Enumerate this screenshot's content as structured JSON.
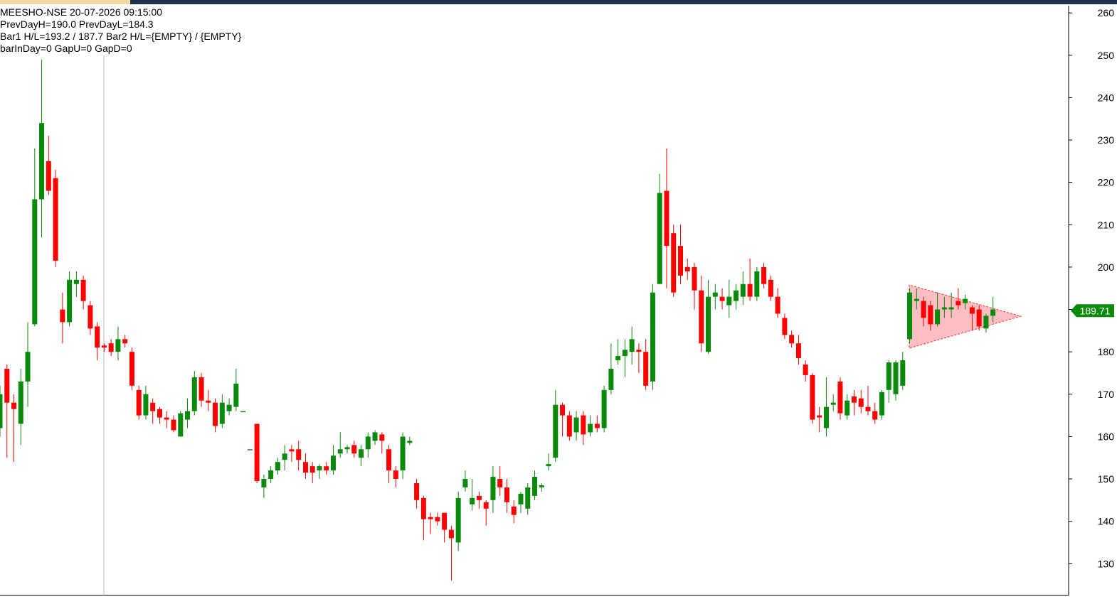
{
  "chart_data": {
    "type": "candlestick",
    "info_lines": [
      "MEESHO-NSE  20-07-2026 09:15:00",
      "PrevDayH=190.0  PrevDayL=184.3",
      "Bar1 H/L=193.2 / 187.7   Bar2 H/L={EMPTY} / {EMPTY}",
      "barInDay=0   GapU=0   GapD=0"
    ],
    "ylim": [
      122.5,
      261.7
    ],
    "yticks": [
      130,
      140,
      150,
      160,
      170,
      180,
      190,
      200,
      210,
      220,
      230,
      240,
      250,
      260
    ],
    "last_price": 189.71,
    "up_color": "#0a8a0a",
    "down_color": "#ff0000",
    "open": [
      162,
      176,
      168,
      163,
      173,
      186.5,
      216,
      225,
      221,
      190,
      187,
      196,
      197,
      191,
      186,
      181.5,
      182,
      180,
      183,
      180,
      171,
      165,
      168,
      166.5,
      164.5,
      164,
      160,
      164,
      166,
      174,
      168.5,
      168,
      163,
      166,
      167,
      166,
      157,
      163,
      148,
      150,
      152,
      154.5,
      157,
      157,
      154,
      153,
      152,
      153,
      152,
      156,
      157,
      158,
      155,
      157,
      159,
      160.5,
      157,
      152,
      152,
      158.5,
      149,
      145.5,
      141,
      141,
      142,
      138,
      135,
      148,
      144,
      146,
      144.5,
      145,
      150,
      148,
      143.5,
      144,
      143,
      146,
      148,
      153,
      155,
      167.5,
      165,
      161,
      165,
      161,
      163,
      162,
      171,
      178,
      179,
      180,
      180.5,
      180,
      173,
      196,
      218,
      208,
      205,
      200,
      200,
      194.5,
      180,
      193,
      193,
      191,
      192,
      193,
      196,
      193,
      200,
      197,
      193,
      188,
      184,
      182,
      177,
      174.5,
      165,
      162,
      167.5,
      173,
      165,
      169.5,
      169,
      167,
      166,
      165,
      171,
      170,
      172,
      183,
      192,
      192,
      191,
      186.5,
      190,
      190,
      192,
      191.5,
      190.5,
      190,
      185.5,
      188.5
    ],
    "high": [
      172,
      177,
      170,
      176,
      187,
      228,
      249,
      231,
      223,
      194,
      199,
      199,
      198,
      192,
      187,
      182,
      183,
      186,
      184,
      181,
      172,
      172,
      169,
      167,
      166,
      165,
      166,
      169,
      175.5,
      175,
      171,
      169,
      170,
      169,
      176,
      166,
      157,
      163,
      151,
      153,
      155,
      158,
      158,
      159,
      156,
      154,
      153.5,
      154,
      158,
      161,
      158,
      159,
      158,
      161,
      161.5,
      161,
      158,
      153,
      161,
      160,
      150,
      146,
      142,
      142,
      142,
      139,
      147,
      152,
      150,
      147,
      145,
      153,
      153,
      150,
      145,
      147,
      149,
      152,
      149,
      156,
      171,
      168,
      166,
      166,
      166,
      165,
      165,
      172,
      182,
      183,
      183,
      186,
      182,
      183,
      196,
      222,
      228,
      210,
      210,
      202,
      201,
      198,
      197,
      196,
      195,
      197,
      196,
      199,
      202,
      200,
      201,
      198,
      195,
      189,
      185,
      184,
      178,
      175,
      167,
      174,
      170,
      174,
      170,
      171,
      171,
      172,
      168,
      171,
      178,
      178,
      180,
      195,
      195,
      193,
      192,
      194,
      193,
      194,
      195,
      193.5,
      191,
      191,
      189,
      193
    ],
    "low": [
      160,
      155,
      154,
      158,
      167,
      186,
      207,
      217,
      200,
      182,
      186,
      193,
      190,
      184,
      178,
      180,
      179,
      178,
      181,
      171,
      164,
      164,
      163,
      163,
      162,
      161,
      160,
      162,
      165,
      167,
      166,
      161,
      162,
      165,
      166,
      166,
      157,
      149,
      145.5,
      149,
      151,
      152,
      154,
      152,
      150,
      149,
      150,
      151,
      151,
      155,
      156,
      155,
      153,
      155,
      158,
      156,
      149,
      148,
      150,
      158,
      143,
      135.5,
      137,
      139,
      135,
      126,
      133,
      147,
      142.5,
      143,
      139,
      142,
      146,
      142,
      139.5,
      142,
      141.5,
      145,
      147,
      152,
      154,
      160,
      159,
      159,
      158,
      160,
      161,
      161,
      170,
      177,
      174,
      177,
      175,
      171,
      171,
      196,
      195,
      193,
      196,
      197,
      190,
      180,
      179.5,
      190,
      190,
      188,
      190,
      191,
      192,
      192,
      195,
      192,
      188,
      183,
      181,
      177,
      173,
      163,
      161,
      160,
      166,
      164,
      164,
      165,
      165.5,
      165,
      163,
      164,
      168,
      168.5,
      171,
      182,
      190,
      186,
      185,
      186,
      188,
      188,
      190,
      190,
      185,
      185,
      184.5,
      187
    ],
    "close": [
      170,
      168,
      166.5,
      173,
      180,
      216,
      234,
      218,
      201.5,
      187,
      197,
      197,
      192,
      185.5,
      181,
      181,
      180,
      183,
      182,
      172,
      165,
      170,
      166,
      164.5,
      164,
      161.5,
      165.5,
      166,
      174,
      168.5,
      168,
      162.5,
      168,
      167.5,
      172.5,
      166,
      157,
      149.5,
      150,
      152,
      154,
      156,
      156.5,
      154.5,
      151.5,
      151.5,
      153,
      152,
      155.5,
      157,
      157.5,
      156,
      157,
      160,
      161,
      159,
      152,
      150,
      160,
      159,
      145,
      140.5,
      140.5,
      140,
      138,
      136,
      145.5,
      150,
      145.5,
      145,
      143,
      150.5,
      148,
      144.5,
      141.5,
      146.5,
      148,
      150.5,
      148.5,
      153.5,
      167.5,
      165,
      160,
      164.5,
      160.5,
      163,
      162,
      171,
      176,
      179,
      180.5,
      183,
      180,
      172,
      194,
      217.5,
      205,
      194,
      198,
      199,
      194.5,
      182,
      193,
      194,
      192,
      193,
      194.5,
      196,
      193,
      199,
      196,
      193,
      189,
      184,
      182,
      178.5,
      174.5,
      164,
      164.5,
      167,
      168,
      165.5,
      168.5,
      168,
      167,
      166,
      164,
      170.5,
      177.5,
      177.5,
      178,
      194,
      192.5,
      188,
      186.5,
      190,
      190.5,
      190.5,
      191,
      192.5,
      189,
      186,
      188.5,
      190
    ]
  }
}
